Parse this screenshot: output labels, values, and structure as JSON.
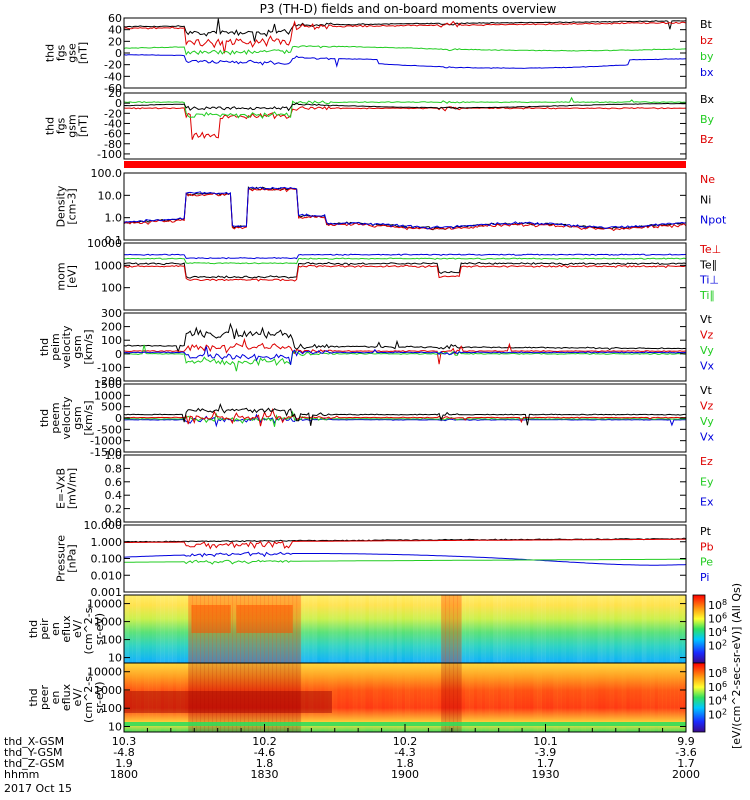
{
  "title": "P3 (TH-D) fields and on-board moments overview",
  "colors": {
    "black": "#000000",
    "red": "#dd0000",
    "green": "#22cc22",
    "blue": "#0000dd",
    "bar_red": "#ff0000"
  },
  "panels": [
    {
      "id": "fgs_gse",
      "ylabel": [
        "thd",
        "fgs",
        "gse",
        "[nT]"
      ],
      "ylim": [
        -60,
        60
      ],
      "scale": "linear",
      "ticks": [
        "60",
        "40",
        "20",
        "0",
        "-20",
        "-40",
        "-60"
      ],
      "legend": [
        {
          "text": "Bt",
          "color": "black"
        },
        {
          "text": "bz",
          "color": "red"
        },
        {
          "text": "by",
          "color": "green"
        },
        {
          "text": "bx",
          "color": "blue"
        }
      ]
    },
    {
      "id": "fgs_gsm",
      "ylabel": [
        "thd",
        "fgs",
        "gsm",
        "[nT]"
      ],
      "ylim": [
        -110,
        20
      ],
      "scale": "linear",
      "ticks": [
        "20",
        "0",
        "-20",
        "-40",
        "-60",
        "-80",
        "-100"
      ],
      "legend": [
        {
          "text": "Bx",
          "color": "black"
        },
        {
          "text": "By",
          "color": "green"
        },
        {
          "text": "Bz",
          "color": "red"
        }
      ]
    },
    {
      "id": "density",
      "ylabel": [
        "Density",
        "[cm-3]"
      ],
      "ylim": [
        0.1,
        100
      ],
      "scale": "log",
      "ticks": [
        "100.0",
        "10.0",
        "1.0",
        "0.1"
      ],
      "legend": [
        {
          "text": "Ne",
          "color": "red"
        },
        {
          "text": "Ni",
          "color": "black"
        },
        {
          "text": "Npot",
          "color": "blue"
        }
      ]
    },
    {
      "id": "temp",
      "ylabel": [
        "mom",
        "[eV]"
      ],
      "ylim": [
        10,
        10000
      ],
      "scale": "log",
      "ticks": [
        "10000",
        "1000",
        "100"
      ],
      "legend": [
        {
          "text": "Te⊥",
          "color": "red"
        },
        {
          "text": "Te∥",
          "color": "black"
        },
        {
          "text": "Ti⊥",
          "color": "blue"
        },
        {
          "text": "Ti∥",
          "color": "green"
        }
      ]
    },
    {
      "id": "vi",
      "ylabel": [
        "thd",
        "peim",
        "velocity",
        "gsm",
        "[km/s]"
      ],
      "ylim": [
        -200,
        300
      ],
      "scale": "linear",
      "ticks": [
        "300",
        "200",
        "100",
        "0",
        "-100",
        "-200"
      ],
      "legend": [
        {
          "text": "Vt",
          "color": "black"
        },
        {
          "text": "Vz",
          "color": "red"
        },
        {
          "text": "Vy",
          "color": "green"
        },
        {
          "text": "Vx",
          "color": "blue"
        }
      ]
    },
    {
      "id": "ve",
      "ylabel": [
        "thd",
        "peem",
        "velocity",
        "gsm",
        "[km/s]"
      ],
      "ylim": [
        -1500,
        1500
      ],
      "scale": "linear",
      "ticks": [
        "1500",
        "1000",
        "500",
        "0",
        "-500",
        "-1000",
        "-1500"
      ],
      "legend": [
        {
          "text": "Vt",
          "color": "black"
        },
        {
          "text": "Vz",
          "color": "red"
        },
        {
          "text": "Vy",
          "color": "green"
        },
        {
          "text": "Vx",
          "color": "blue"
        }
      ]
    },
    {
      "id": "efield",
      "ylabel": [
        "E=-VxB",
        "[mV/m]"
      ],
      "ylim": [
        0,
        1
      ],
      "scale": "linear",
      "ticks": [
        "1.0",
        "0.8",
        "0.6",
        "0.4",
        "0.2",
        "0.0"
      ],
      "legend": [
        {
          "text": "Ez",
          "color": "red"
        },
        {
          "text": "Ey",
          "color": "green"
        },
        {
          "text": "Ex",
          "color": "blue"
        }
      ]
    },
    {
      "id": "pressure",
      "ylabel": [
        "Pressure",
        "[nPa]"
      ],
      "ylim": [
        0.001,
        10
      ],
      "scale": "log",
      "ticks": [
        "10.000",
        "1.000",
        "0.100",
        "0.010",
        "0.001"
      ],
      "legend": [
        {
          "text": "Pt",
          "color": "black"
        },
        {
          "text": "Pb",
          "color": "red"
        },
        {
          "text": "Pe",
          "color": "green"
        },
        {
          "text": "Pi",
          "color": "blue"
        }
      ]
    },
    {
      "id": "peir",
      "ylabel": [
        "thd",
        "peir",
        "en",
        "eflux",
        "eV/",
        "(cm^2-s-",
        "sr-eV)"
      ],
      "ylim": [
        5,
        30000
      ],
      "scale": "log",
      "ticks": [
        "10000",
        "1000",
        "100",
        "10"
      ],
      "legend": []
    },
    {
      "id": "peer",
      "ylabel": [
        "thd",
        "peer",
        "en",
        "eflux",
        "eV/",
        "(cm^2-s-",
        "sr-eV)"
      ],
      "ylim": [
        5,
        30000
      ],
      "scale": "log",
      "ticks": [
        "10000",
        "1000",
        "100",
        "10"
      ],
      "legend": []
    }
  ],
  "colorbar": {
    "upper_ticks": [
      "10^8",
      "10^6",
      "10^4",
      "10^2"
    ],
    "lower_ticks": [
      "10^8",
      "10^6",
      "10^4",
      "10^2"
    ],
    "label": "[eV/(cm^2-sec-sr-eV)] (All Qs)"
  },
  "x_axis": {
    "rows": [
      {
        "label": "thd_X-GSM",
        "values": [
          "10.3",
          "10.2",
          "10.2",
          "10.1",
          "9.9"
        ]
      },
      {
        "label": "thd_Y-GSM",
        "values": [
          "-4.8",
          "-4.6",
          "-4.3",
          "-3.9",
          "-3.6"
        ]
      },
      {
        "label": "thd_Z-GSM",
        "values": [
          "1.9",
          "1.8",
          "1.8",
          "1.7",
          "1.7"
        ]
      },
      {
        "label": "hhmm",
        "values": [
          "1800",
          "1830",
          "1900",
          "1930",
          "2000"
        ]
      }
    ],
    "date": "2017 Oct 15"
  },
  "chart_data": {
    "type": "line",
    "title": "P3 (TH-D) fields and on-board moments overview",
    "x_ticks": [
      "1800",
      "1830",
      "1900",
      "1930",
      "2000"
    ],
    "xlim": [
      "1800",
      "2000"
    ],
    "series": [
      {
        "panel": "fgs_gse",
        "name": "Bt",
        "x": [
          "1800",
          "1815",
          "1820",
          "1830",
          "1845",
          "1900",
          "1930",
          "2000"
        ],
        "y": [
          45,
          48,
          35,
          45,
          50,
          50,
          52,
          55
        ]
      },
      {
        "panel": "fgs_gse",
        "name": "bz",
        "x": [
          "1800",
          "1815",
          "1820",
          "1830",
          "1845",
          "1900",
          "1930",
          "2000"
        ],
        "y": [
          40,
          45,
          10,
          40,
          48,
          47,
          50,
          53
        ]
      },
      {
        "panel": "fgs_gse",
        "name": "by",
        "x": [
          "1800",
          "1815",
          "1820",
          "1830",
          "1845",
          "1900",
          "1930",
          "2000"
        ],
        "y": [
          5,
          10,
          -10,
          5,
          12,
          10,
          8,
          5
        ]
      },
      {
        "panel": "fgs_gse",
        "name": "bx",
        "x": [
          "1800",
          "1815",
          "1820",
          "1830",
          "1845",
          "1900",
          "1930",
          "2000"
        ],
        "y": [
          -10,
          -5,
          -25,
          -10,
          -5,
          -15,
          -25,
          -10
        ]
      },
      {
        "panel": "density",
        "name": "Ni",
        "x": [
          "1800",
          "1805",
          "1810",
          "1815",
          "1820",
          "1825",
          "1830",
          "1840",
          "1900",
          "2000"
        ],
        "y": [
          0.5,
          0.5,
          1,
          12,
          0.4,
          20,
          15,
          0.6,
          0.4,
          0.4
        ]
      },
      {
        "panel": "pressure",
        "name": "Pt",
        "x": [
          "1800",
          "1830",
          "1900",
          "2000"
        ],
        "y": [
          1.0,
          1.2,
          1.1,
          1.5
        ]
      },
      {
        "panel": "pressure",
        "name": "Pe",
        "x": [
          "1800",
          "1830",
          "1900",
          "2000"
        ],
        "y": [
          0.1,
          0.12,
          0.1,
          0.15
        ]
      }
    ]
  }
}
